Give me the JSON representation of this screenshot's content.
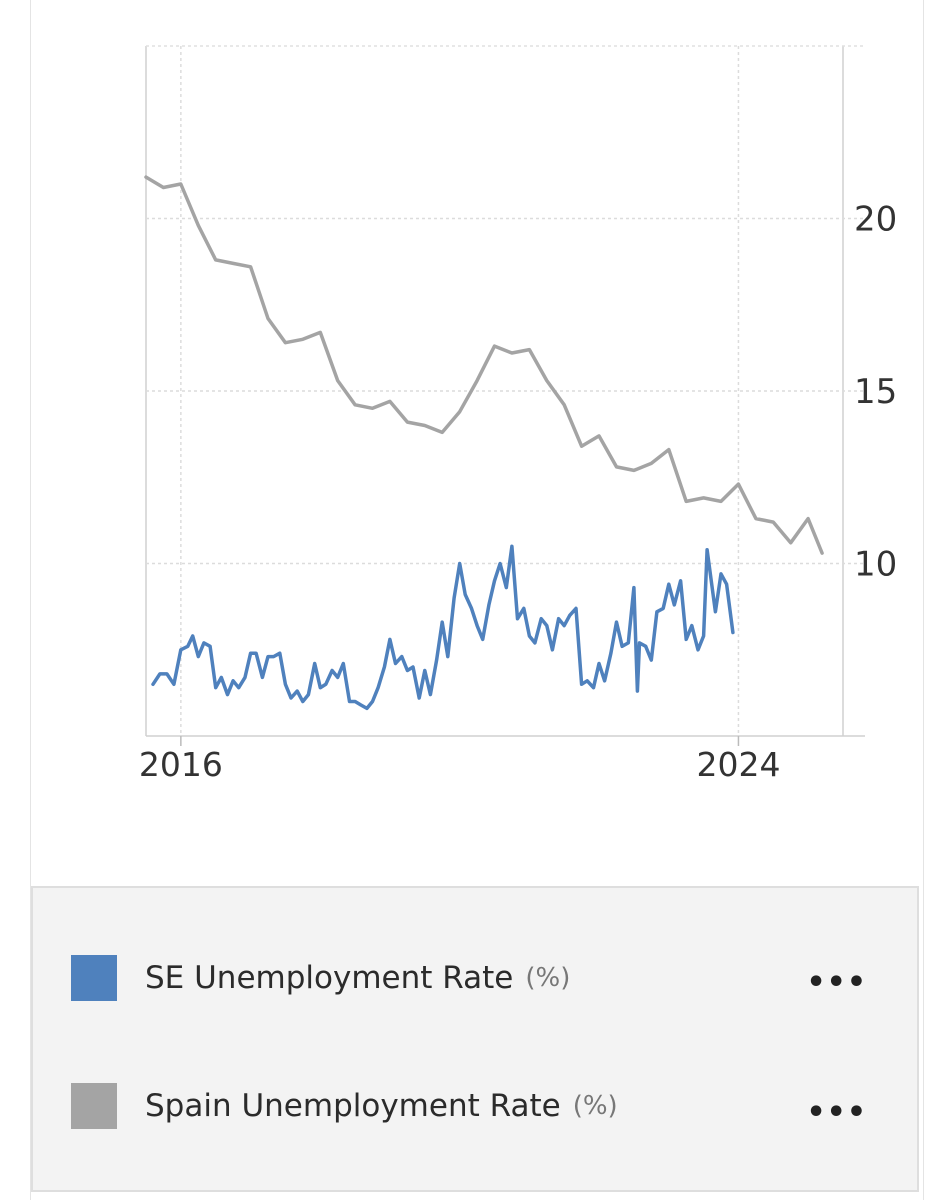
{
  "chart_data": {
    "type": "line",
    "x_ticks": [
      "2016",
      "2024"
    ],
    "y_ticks": [
      "10",
      "15",
      "20"
    ],
    "ylim": [
      5,
      25
    ],
    "xlim": [
      2015.5,
      2025.5
    ],
    "grid": true,
    "series": [
      {
        "name": "Spain Unemployment Rate",
        "unit": "(%)",
        "color": "#a4a4a4",
        "points": [
          [
            2015.5,
            21.2
          ],
          [
            2015.75,
            20.9
          ],
          [
            2016.0,
            21.0
          ],
          [
            2016.25,
            19.8
          ],
          [
            2016.5,
            18.8
          ],
          [
            2016.75,
            18.7
          ],
          [
            2017.0,
            18.6
          ],
          [
            2017.25,
            17.1
          ],
          [
            2017.5,
            16.4
          ],
          [
            2017.75,
            16.5
          ],
          [
            2018.0,
            16.7
          ],
          [
            2018.25,
            15.3
          ],
          [
            2018.5,
            14.6
          ],
          [
            2018.75,
            14.5
          ],
          [
            2019.0,
            14.7
          ],
          [
            2019.25,
            14.1
          ],
          [
            2019.5,
            14.0
          ],
          [
            2019.75,
            13.8
          ],
          [
            2020.0,
            14.4
          ],
          [
            2020.25,
            15.3
          ],
          [
            2020.5,
            16.3
          ],
          [
            2020.75,
            16.1
          ],
          [
            2021.0,
            16.2
          ],
          [
            2021.25,
            15.3
          ],
          [
            2021.5,
            14.6
          ],
          [
            2021.75,
            13.4
          ],
          [
            2022.0,
            13.7
          ],
          [
            2022.25,
            12.8
          ],
          [
            2022.5,
            12.7
          ],
          [
            2022.75,
            12.9
          ],
          [
            2023.0,
            13.3
          ],
          [
            2023.25,
            11.8
          ],
          [
            2023.5,
            11.9
          ],
          [
            2023.75,
            11.8
          ],
          [
            2024.0,
            12.3
          ],
          [
            2024.25,
            11.3
          ],
          [
            2024.5,
            11.2
          ],
          [
            2024.75,
            10.6
          ],
          [
            2025.0,
            11.3
          ],
          [
            2025.2,
            10.3
          ]
        ]
      },
      {
        "name": "SE Unemployment Rate",
        "unit": "(%)",
        "color": "#4f81bd",
        "points": [
          [
            2015.6,
            6.5
          ],
          [
            2015.7,
            6.8
          ],
          [
            2015.8,
            6.8
          ],
          [
            2015.9,
            6.5
          ],
          [
            2016.0,
            7.5
          ],
          [
            2016.1,
            7.6
          ],
          [
            2016.17,
            7.9
          ],
          [
            2016.25,
            7.3
          ],
          [
            2016.33,
            7.7
          ],
          [
            2016.42,
            7.6
          ],
          [
            2016.5,
            6.4
          ],
          [
            2016.58,
            6.7
          ],
          [
            2016.67,
            6.2
          ],
          [
            2016.75,
            6.6
          ],
          [
            2016.83,
            6.4
          ],
          [
            2016.92,
            6.7
          ],
          [
            2017.0,
            7.4
          ],
          [
            2017.08,
            7.4
          ],
          [
            2017.17,
            6.7
          ],
          [
            2017.25,
            7.3
          ],
          [
            2017.33,
            7.3
          ],
          [
            2017.42,
            7.4
          ],
          [
            2017.5,
            6.5
          ],
          [
            2017.58,
            6.1
          ],
          [
            2017.67,
            6.3
          ],
          [
            2017.75,
            6.0
          ],
          [
            2017.83,
            6.2
          ],
          [
            2017.92,
            7.1
          ],
          [
            2018.0,
            6.4
          ],
          [
            2018.08,
            6.5
          ],
          [
            2018.17,
            6.9
          ],
          [
            2018.25,
            6.7
          ],
          [
            2018.33,
            7.1
          ],
          [
            2018.42,
            6.0
          ],
          [
            2018.5,
            6.0
          ],
          [
            2018.58,
            5.9
          ],
          [
            2018.67,
            5.8
          ],
          [
            2018.75,
            6.0
          ],
          [
            2018.83,
            6.4
          ],
          [
            2018.92,
            7.0
          ],
          [
            2019.0,
            7.8
          ],
          [
            2019.08,
            7.1
          ],
          [
            2019.17,
            7.3
          ],
          [
            2019.25,
            6.9
          ],
          [
            2019.33,
            7.0
          ],
          [
            2019.42,
            6.1
          ],
          [
            2019.5,
            6.9
          ],
          [
            2019.58,
            6.2
          ],
          [
            2019.67,
            7.2
          ],
          [
            2019.75,
            8.3
          ],
          [
            2019.83,
            7.3
          ],
          [
            2019.92,
            9.0
          ],
          [
            2020.0,
            10.0
          ],
          [
            2020.08,
            9.1
          ],
          [
            2020.17,
            8.7
          ],
          [
            2020.25,
            8.2
          ],
          [
            2020.33,
            7.8
          ],
          [
            2020.42,
            8.8
          ],
          [
            2020.5,
            9.5
          ],
          [
            2020.58,
            10.0
          ],
          [
            2020.67,
            9.3
          ],
          [
            2020.75,
            10.5
          ],
          [
            2020.83,
            8.4
          ],
          [
            2020.92,
            8.7
          ],
          [
            2021.0,
            7.9
          ],
          [
            2021.08,
            7.7
          ],
          [
            2021.17,
            8.4
          ],
          [
            2021.25,
            8.2
          ],
          [
            2021.33,
            7.5
          ],
          [
            2021.42,
            8.4
          ],
          [
            2021.5,
            8.2
          ],
          [
            2021.58,
            8.5
          ],
          [
            2021.67,
            8.7
          ],
          [
            2021.75,
            6.5
          ],
          [
            2021.83,
            6.6
          ],
          [
            2021.92,
            6.4
          ],
          [
            2022.0,
            7.1
          ],
          [
            2022.08,
            6.6
          ],
          [
            2022.17,
            7.4
          ],
          [
            2022.25,
            8.3
          ],
          [
            2022.33,
            7.6
          ],
          [
            2022.42,
            7.7
          ],
          [
            2022.5,
            9.3
          ],
          [
            2022.55,
            6.3
          ],
          [
            2022.58,
            7.7
          ],
          [
            2022.67,
            7.6
          ],
          [
            2022.75,
            7.2
          ],
          [
            2022.83,
            8.6
          ],
          [
            2022.92,
            8.7
          ],
          [
            2023.0,
            9.4
          ],
          [
            2023.08,
            8.8
          ],
          [
            2023.17,
            9.5
          ],
          [
            2023.25,
            7.8
          ],
          [
            2023.33,
            8.2
          ],
          [
            2023.42,
            7.5
          ],
          [
            2023.5,
            7.9
          ],
          [
            2023.55,
            10.4
          ],
          [
            2023.67,
            8.6
          ],
          [
            2023.75,
            9.7
          ],
          [
            2023.83,
            9.4
          ],
          [
            2023.92,
            8.0
          ]
        ]
      }
    ]
  },
  "legend": {
    "items": [
      {
        "label": "SE Unemployment Rate",
        "unit": "(%)",
        "color": "#4f81bd",
        "more": "•••"
      },
      {
        "label": "Spain Unemployment Rate",
        "unit": "(%)",
        "color": "#a4a4a4",
        "more": "•••"
      }
    ]
  }
}
